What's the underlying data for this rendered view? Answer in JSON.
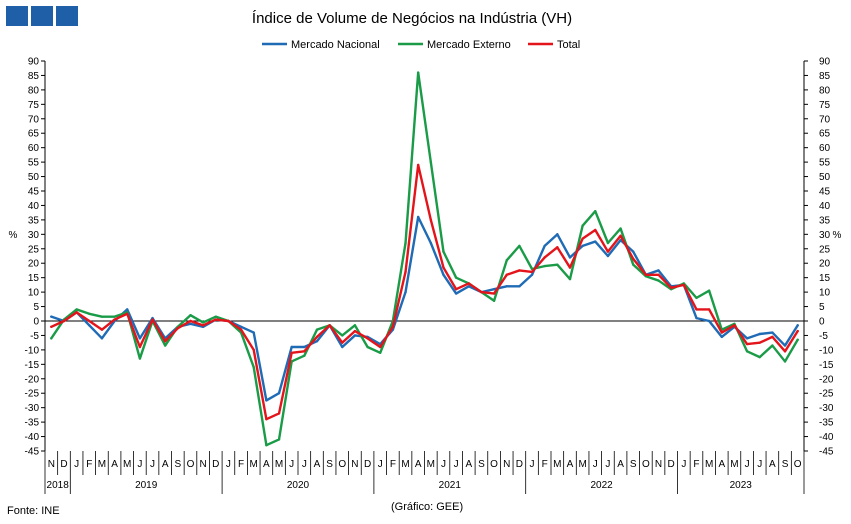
{
  "header": {
    "logo_color": "#1f5fa8",
    "logo_blocks": 3
  },
  "footer": {
    "source": "Fonte: INE",
    "credit": "(Gráfico: GEE)"
  },
  "chart_data": {
    "type": "line",
    "title": "Índice de Volume de Negócios na Indústria (VH)",
    "ylabel_left": "%",
    "ylabel_right": "%",
    "ylim": [
      -45,
      90
    ],
    "ytick_step": 5,
    "grid": false,
    "legend_position": "top-center",
    "month_labels": [
      "N",
      "D",
      "J",
      "F",
      "M",
      "A",
      "M",
      "J",
      "J",
      "A",
      "S",
      "O",
      "N",
      "D",
      "J",
      "F",
      "M",
      "A",
      "M",
      "J",
      "J",
      "A",
      "S",
      "O",
      "N",
      "D",
      "J",
      "F",
      "M",
      "A",
      "M",
      "J",
      "J",
      "A",
      "S",
      "O",
      "N",
      "D",
      "J",
      "F",
      "M",
      "A",
      "M",
      "J",
      "J",
      "A",
      "S",
      "O",
      "N",
      "D",
      "J",
      "F",
      "M",
      "A",
      "M",
      "J",
      "J",
      "A",
      "S",
      "O"
    ],
    "year_groups": [
      {
        "label": "2018",
        "start": 0,
        "end": 1
      },
      {
        "label": "2019",
        "start": 2,
        "end": 13
      },
      {
        "label": "2020",
        "start": 14,
        "end": 25
      },
      {
        "label": "2021",
        "start": 26,
        "end": 37
      },
      {
        "label": "2022",
        "start": 38,
        "end": 49
      },
      {
        "label": "2023",
        "start": 50,
        "end": 59
      }
    ],
    "series": [
      {
        "name": "Mercado Nacional",
        "color": "#1f6bb5",
        "values": [
          1.5,
          0,
          3,
          -1.5,
          -6,
          0,
          4,
          -6,
          1,
          -6,
          -2,
          -1,
          -2,
          0.5,
          0,
          -2,
          -4,
          -27.5,
          -25,
          -9,
          -9,
          -7,
          -1.5,
          -9,
          -5,
          -5.5,
          -8,
          -3,
          10,
          36,
          27,
          16,
          9.5,
          12,
          10,
          11,
          12,
          12,
          16,
          26,
          30,
          22,
          26,
          27.5,
          22.5,
          28,
          24,
          16,
          17.5,
          12,
          12.5,
          1,
          0,
          -5.5,
          -2,
          -6,
          -4.5,
          -4,
          -8.5,
          -1.5
        ]
      },
      {
        "name": "Mercado Externo",
        "color": "#1a9b47",
        "values": [
          -6,
          0.5,
          4,
          2.5,
          1.5,
          1.5,
          3,
          -13,
          0,
          -8.5,
          -2,
          2,
          -0.5,
          1.5,
          0,
          -4,
          -16,
          -43,
          -41,
          -14,
          -12,
          -3,
          -1.5,
          -5,
          -1.5,
          -9,
          -11,
          0,
          27,
          86,
          55,
          24,
          15,
          13,
          10,
          7,
          21,
          26,
          18,
          19,
          19.5,
          14.5,
          33,
          38,
          27,
          32,
          19.5,
          15.5,
          14,
          11,
          13,
          8,
          10.5,
          -3,
          -1,
          -10.5,
          -12.5,
          -8.5,
          -14,
          -6.5
        ]
      },
      {
        "name": "Total",
        "color": "#e4141b",
        "values": [
          -2,
          0,
          3,
          0,
          -3,
          0.5,
          2.5,
          -9,
          0.5,
          -7,
          -2.5,
          0,
          -1.5,
          0.5,
          0,
          -3,
          -10,
          -34,
          -32,
          -11,
          -10.5,
          -5.5,
          -1.5,
          -7.5,
          -3.5,
          -6,
          -9,
          -2,
          17,
          54,
          35,
          18.5,
          11,
          13,
          10,
          9.5,
          16,
          17.5,
          17,
          22,
          25.5,
          18.5,
          28.5,
          31.5,
          24,
          29.5,
          21.5,
          16,
          16,
          11.5,
          12.5,
          4,
          4,
          -4,
          -1.5,
          -8,
          -7.5,
          -5.5,
          -10.5,
          -3.5
        ]
      }
    ]
  }
}
